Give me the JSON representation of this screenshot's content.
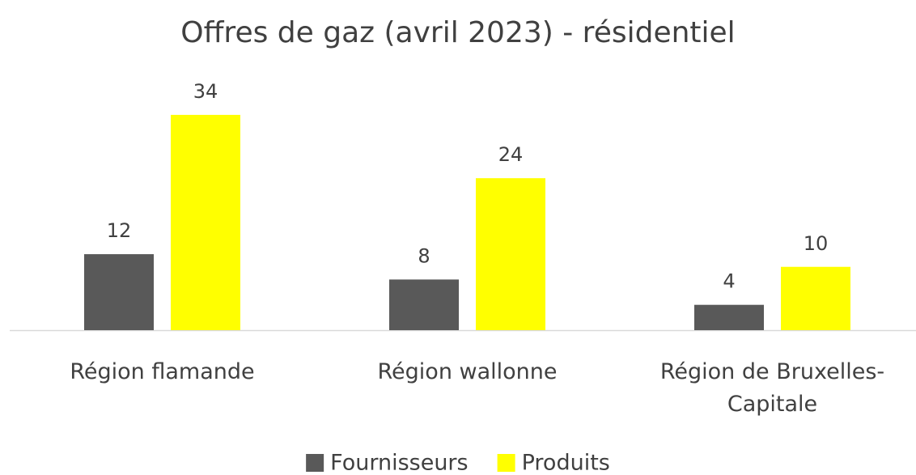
{
  "chart_data": {
    "type": "bar",
    "title": "Offres de gaz (avril 2023) - résidentiel",
    "categories": [
      "Région flamande",
      "Région wallonne",
      "Région de Bruxelles-Capitale"
    ],
    "series": [
      {
        "name": "Fournisseurs",
        "color": "#595959",
        "values": [
          12,
          8,
          4
        ]
      },
      {
        "name": "Produits",
        "color": "#ffff00",
        "values": [
          34,
          24,
          10
        ]
      }
    ],
    "ylim": [
      0,
      40
    ],
    "grid": false,
    "legend": "bottom"
  }
}
